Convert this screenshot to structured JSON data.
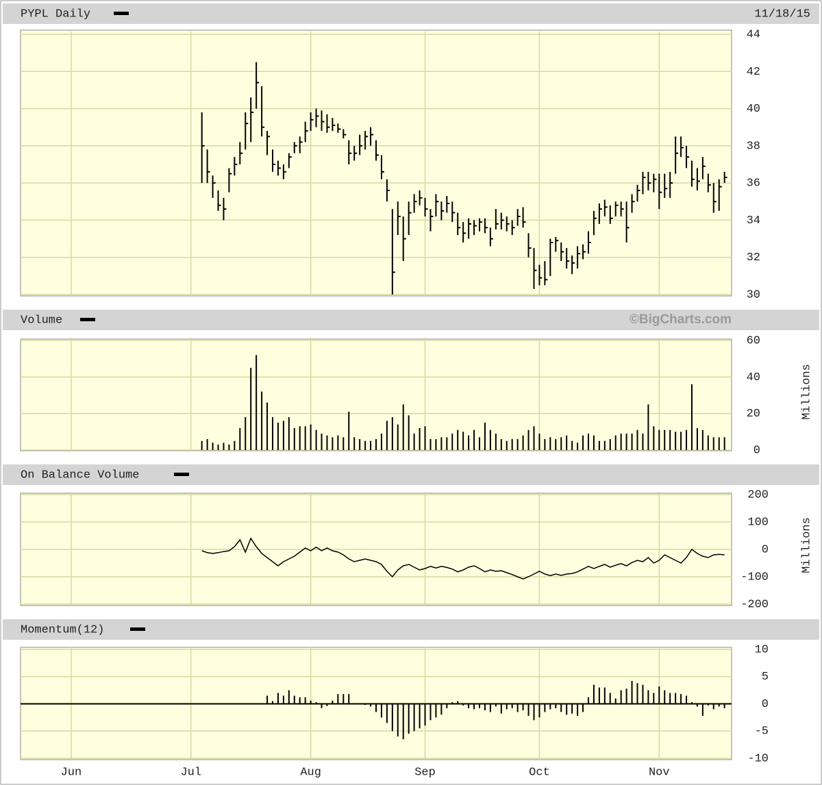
{
  "chart_data": [
    {
      "type": "hlc",
      "title": "PYPL Daily",
      "date": "11/18/15",
      "color": "#000000",
      "grid": true,
      "ylim": [
        30,
        44
      ],
      "yticks": [
        30,
        32,
        34,
        36,
        38,
        40,
        42,
        44
      ],
      "x": [
        24,
        25,
        26,
        27,
        28,
        29,
        30,
        31,
        32,
        33,
        34,
        35,
        36,
        37,
        38,
        39,
        40,
        41,
        42,
        43,
        44,
        45,
        46,
        47,
        48,
        49,
        50,
        51,
        52,
        53,
        54,
        55,
        56,
        57,
        58,
        59,
        60,
        61,
        62,
        63,
        64,
        65,
        66,
        67,
        68,
        69,
        70,
        71,
        72,
        73,
        74,
        75,
        76,
        77,
        78,
        79,
        80,
        81,
        82,
        83,
        84,
        85,
        86,
        87,
        88,
        89,
        90,
        91,
        92,
        93,
        94,
        95,
        96,
        97,
        98,
        99,
        100,
        101,
        102,
        103,
        104,
        105,
        106,
        107,
        108,
        109,
        110,
        111,
        112,
        113,
        114,
        115,
        116,
        117,
        118,
        119,
        120
      ],
      "high": [
        39.8,
        37.8,
        36.4,
        35.6,
        35.2,
        36.8,
        37.4,
        38.2,
        39.8,
        40.6,
        42.5,
        41.2,
        38.8,
        37.8,
        37.2,
        37.0,
        37.6,
        38.2,
        38.5,
        39.3,
        39.8,
        40.0,
        39.9,
        39.7,
        39.5,
        39.2,
        38.9,
        38.3,
        38.0,
        38.6,
        38.8,
        39.0,
        38.3,
        37.5,
        36.2,
        34.6,
        35.0,
        34.2,
        35.0,
        35.4,
        35.6,
        35.2,
        34.6,
        35.4,
        35.0,
        35.3,
        35.0,
        34.4,
        33.9,
        34.1,
        34.0,
        34.1,
        34.1,
        33.6,
        34.6,
        34.4,
        34.2,
        34.0,
        34.6,
        34.7,
        33.3,
        32.5,
        31.6,
        31.8,
        33.0,
        33.1,
        32.8,
        32.5,
        32.1,
        32.6,
        32.7,
        33.4,
        34.5,
        34.9,
        35.1,
        34.8,
        35.0,
        35.0,
        35.0,
        35.4,
        35.9,
        36.6,
        36.6,
        36.5,
        36.5,
        36.5,
        36.6,
        38.5,
        38.5,
        38.0,
        37.2,
        36.8,
        37.4,
        36.5,
        36.0,
        36.2,
        36.6
      ],
      "low": [
        36,
        36,
        35.2,
        34.5,
        34,
        35.5,
        36.4,
        37,
        37.8,
        38.2,
        40,
        38.5,
        37.5,
        36.6,
        36.4,
        36.2,
        36.8,
        37.6,
        37.6,
        38.2,
        38.8,
        39.0,
        38.8,
        38.7,
        38.8,
        38.7,
        38.4,
        37.0,
        37.2,
        37.5,
        37.8,
        38.0,
        37.2,
        36.2,
        35.0,
        30.0,
        33.2,
        31.8,
        33.2,
        34.4,
        34.8,
        34.2,
        33.4,
        34.2,
        34.0,
        34.4,
        33.9,
        33.2,
        32.8,
        33.0,
        33.2,
        33.4,
        33.3,
        32.6,
        33.5,
        33.5,
        33.4,
        33.2,
        33.7,
        33.6,
        32.0,
        30.3,
        30.5,
        30.5,
        31.0,
        32.3,
        31.8,
        31.4,
        31.1,
        31.4,
        31.9,
        32.2,
        33.2,
        33.8,
        34.2,
        33.8,
        34.2,
        34.2,
        32.8,
        34.4,
        35.0,
        35.4,
        35.6,
        35.5,
        34.6,
        35.2,
        35.2,
        36.5,
        37.4,
        36.8,
        35.8,
        35.6,
        36.2,
        35.5,
        34.4,
        34.5,
        36.0
      ],
      "close": [
        38,
        36.6,
        36,
        34.8,
        34.6,
        36.5,
        37,
        37.6,
        39.2,
        39.8,
        41.4,
        39,
        38.5,
        37,
        36.8,
        36.6,
        37.4,
        38,
        38.2,
        38.8,
        39.4,
        39.6,
        39.3,
        39.0,
        39.1,
        38.9,
        38.6,
        37.6,
        37.6,
        38.0,
        38.5,
        38.6,
        37.5,
        36.6,
        35.6,
        31.2,
        34.2,
        33.0,
        34.4,
        35.0,
        35.2,
        34.6,
        34.2,
        35.0,
        34.5,
        34.9,
        34.4,
        33.6,
        33.3,
        33.8,
        33.7,
        33.9,
        33.6,
        33.0,
        33.8,
        34.0,
        33.8,
        33.6,
        34.2,
        33.9,
        32.5,
        31.3,
        30.9,
        30.8,
        32.8,
        32.9,
        32.3,
        31.8,
        31.7,
        32.2,
        32.3,
        32.8,
        34.1,
        34.6,
        34.7,
        34.1,
        34.8,
        34.6,
        33.6,
        35.0,
        35.6,
        36.3,
        36.0,
        36.2,
        35.5,
        35.7,
        36.0,
        37.6,
        37.9,
        37.4,
        36.2,
        36.1,
        36.9,
        35.9,
        35.0,
        35.8,
        36.3
      ]
    },
    {
      "type": "bar",
      "title": "Volume",
      "credit": "©BigCharts.com",
      "y_label": "Millions",
      "color": "#000000",
      "grid": true,
      "ylim": [
        0,
        60
      ],
      "yticks": [
        0,
        20,
        40,
        60
      ],
      "values": [
        5,
        6,
        4,
        3,
        4,
        3,
        5,
        12,
        18,
        45,
        52,
        32,
        26,
        18,
        15,
        16,
        18,
        12,
        13,
        13,
        14,
        11,
        9,
        8,
        7,
        8,
        7,
        21,
        7,
        6,
        5,
        5,
        6,
        9,
        16,
        18,
        14,
        25,
        19,
        9,
        12,
        13,
        6,
        6,
        7,
        7,
        9,
        11,
        10,
        8,
        11,
        7,
        15,
        11,
        9,
        6,
        5,
        6,
        6,
        8,
        11,
        13,
        9,
        6,
        7,
        6,
        7,
        8,
        5,
        4,
        8,
        9,
        8,
        5,
        5,
        6,
        8,
        9,
        9,
        9,
        11,
        9,
        25,
        13,
        11,
        11,
        11,
        10,
        10,
        11,
        36,
        12,
        11,
        8,
        7,
        7,
        7
      ]
    },
    {
      "type": "line",
      "title": "On Balance Volume",
      "y_label": "Millions",
      "color": "#000000",
      "grid": true,
      "ylim": [
        -200,
        200
      ],
      "yticks": [
        -200,
        -100,
        0,
        100,
        200
      ],
      "values": [
        -5,
        -12,
        -15,
        -12,
        -8,
        -5,
        10,
        35,
        -10,
        40,
        10,
        -15,
        -30,
        -45,
        -60,
        -45,
        -35,
        -25,
        -10,
        5,
        -5,
        8,
        -5,
        5,
        -5,
        -10,
        -20,
        -35,
        -45,
        -40,
        -35,
        -40,
        -45,
        -55,
        -80,
        -100,
        -75,
        -60,
        -55,
        -65,
        -75,
        -70,
        -62,
        -68,
        -62,
        -66,
        -72,
        -82,
        -75,
        -65,
        -60,
        -70,
        -82,
        -75,
        -80,
        -78,
        -85,
        -92,
        -100,
        -108,
        -100,
        -90,
        -80,
        -90,
        -96,
        -90,
        -95,
        -90,
        -88,
        -82,
        -72,
        -62,
        -70,
        -62,
        -55,
        -65,
        -58,
        -52,
        -60,
        -48,
        -40,
        -45,
        -30,
        -50,
        -40,
        -20,
        -30,
        -40,
        -50,
        -30,
        0,
        -15,
        -25,
        -30,
        -20,
        -18,
        -20
      ]
    },
    {
      "type": "bar",
      "title": "Momentum(12)",
      "color": "#000000",
      "grid": true,
      "zero_line": true,
      "ylim": [
        -10,
        10
      ],
      "yticks": [
        -10,
        -5,
        0,
        5,
        10
      ],
      "xlim": [
        -9.3,
        121.3
      ],
      "xticks": [
        {
          "value": 0,
          "label": "Jun"
        },
        {
          "value": 22,
          "label": "Jul"
        },
        {
          "value": 44,
          "label": "Aug"
        },
        {
          "value": 65,
          "label": "Sep"
        },
        {
          "value": 86,
          "label": "Oct"
        },
        {
          "value": 108,
          "label": "Nov"
        }
      ],
      "values": [
        null,
        null,
        null,
        null,
        null,
        null,
        null,
        null,
        null,
        null,
        null,
        null,
        1.5,
        0.5,
        2,
        1.5,
        2.5,
        1.5,
        1.2,
        1.2,
        0.6,
        0.3,
        -0.8,
        -0.4,
        0.6,
        1.8,
        1.8,
        1.8,
        0,
        0,
        -0.2,
        -0.5,
        -1.5,
        -2.5,
        -3.5,
        -5,
        -6,
        -6.5,
        -5.5,
        -5,
        -4.5,
        -4,
        -3,
        -2.5,
        -2,
        -0.8,
        0.3,
        0.5,
        -0.3,
        -0.8,
        -1,
        -0.8,
        -1.2,
        -1.5,
        -0.5,
        -1.8,
        -1,
        -0.8,
        -1.5,
        -1.2,
        -2.2,
        -3,
        -2.5,
        -1.5,
        -1,
        -0.8,
        -1.5,
        -2,
        -1.8,
        -2.2,
        -1.5,
        1.2,
        3.5,
        3,
        3,
        2,
        1,
        2.5,
        2.8,
        4.2,
        3.8,
        3.5,
        2.5,
        2,
        3.2,
        2.5,
        2,
        2,
        1.8,
        1.5,
        0.3,
        -0.5,
        -2.2,
        -0.3,
        -1,
        -0.5,
        -0.8
      ]
    }
  ]
}
